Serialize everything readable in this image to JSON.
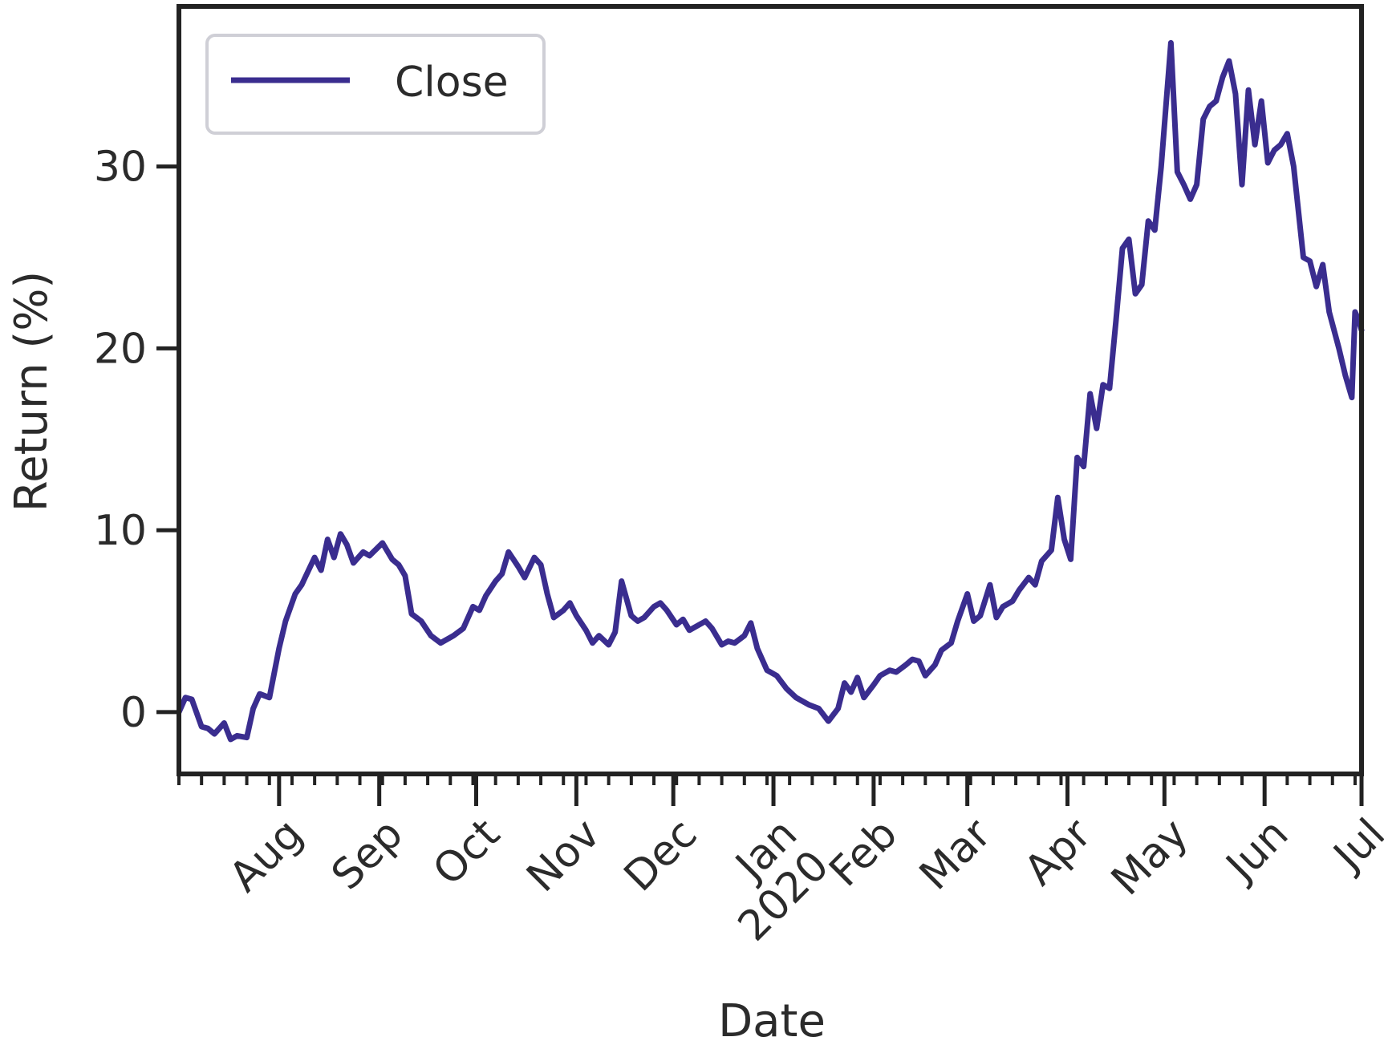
{
  "chart_data": {
    "type": "line",
    "xlabel": "Date",
    "ylabel": "Return (%)",
    "ylim": [
      -3.4,
      38.8
    ],
    "xlim": [
      "2019-07-01",
      "2020-07-01"
    ],
    "grid": false,
    "legend_position": "top-left",
    "colors": {
      "line": "#3a2d8f",
      "axis": "#222222",
      "legend_border": "#cfcfd6"
    },
    "yticks": [
      0,
      10,
      20,
      30
    ],
    "xticks": [
      {
        "date": "2019-08-01",
        "label": "Aug"
      },
      {
        "date": "2019-09-01",
        "label": "Sep"
      },
      {
        "date": "2019-10-01",
        "label": "Oct"
      },
      {
        "date": "2019-11-01",
        "label": "Nov"
      },
      {
        "date": "2019-12-01",
        "label": "Dec"
      },
      {
        "date": "2020-01-01",
        "label": "Jan\n2020"
      },
      {
        "date": "2020-02-01",
        "label": "Feb"
      },
      {
        "date": "2020-03-01",
        "label": "Mar"
      },
      {
        "date": "2020-04-01",
        "label": "Apr"
      },
      {
        "date": "2020-05-01",
        "label": "May"
      },
      {
        "date": "2020-06-01",
        "label": "Jun"
      },
      {
        "date": "2020-07-01",
        "label": "Jul"
      }
    ],
    "series": [
      {
        "name": "Close",
        "points": [
          [
            "2019-07-01",
            0.0
          ],
          [
            "2019-07-03",
            0.8
          ],
          [
            "2019-07-05",
            0.7
          ],
          [
            "2019-07-08",
            -0.8
          ],
          [
            "2019-07-10",
            -0.9
          ],
          [
            "2019-07-12",
            -1.2
          ],
          [
            "2019-07-15",
            -0.6
          ],
          [
            "2019-07-17",
            -1.5
          ],
          [
            "2019-07-19",
            -1.3
          ],
          [
            "2019-07-22",
            -1.4
          ],
          [
            "2019-07-24",
            0.2
          ],
          [
            "2019-07-26",
            1.0
          ],
          [
            "2019-07-29",
            0.8
          ],
          [
            "2019-08-01",
            3.5
          ],
          [
            "2019-08-03",
            5.0
          ],
          [
            "2019-08-06",
            6.5
          ],
          [
            "2019-08-08",
            7.0
          ],
          [
            "2019-08-12",
            8.5
          ],
          [
            "2019-08-14",
            7.8
          ],
          [
            "2019-08-16",
            9.5
          ],
          [
            "2019-08-18",
            8.5
          ],
          [
            "2019-08-20",
            9.8
          ],
          [
            "2019-08-22",
            9.2
          ],
          [
            "2019-08-24",
            8.2
          ],
          [
            "2019-08-27",
            8.8
          ],
          [
            "2019-08-29",
            8.6
          ],
          [
            "2019-09-02",
            9.3
          ],
          [
            "2019-09-05",
            8.4
          ],
          [
            "2019-09-07",
            8.1
          ],
          [
            "2019-09-09",
            7.5
          ],
          [
            "2019-09-11",
            5.4
          ],
          [
            "2019-09-14",
            5.0
          ],
          [
            "2019-09-17",
            4.2
          ],
          [
            "2019-09-20",
            3.8
          ],
          [
            "2019-09-24",
            4.2
          ],
          [
            "2019-09-27",
            4.6
          ],
          [
            "2019-09-30",
            5.8
          ],
          [
            "2019-10-02",
            5.6
          ],
          [
            "2019-10-04",
            6.4
          ],
          [
            "2019-10-07",
            7.2
          ],
          [
            "2019-10-09",
            7.6
          ],
          [
            "2019-10-11",
            8.8
          ],
          [
            "2019-10-14",
            8.0
          ],
          [
            "2019-10-16",
            7.4
          ],
          [
            "2019-10-19",
            8.5
          ],
          [
            "2019-10-21",
            8.1
          ],
          [
            "2019-10-23",
            6.5
          ],
          [
            "2019-10-25",
            5.2
          ],
          [
            "2019-10-28",
            5.6
          ],
          [
            "2019-10-30",
            6.0
          ],
          [
            "2019-11-01",
            5.3
          ],
          [
            "2019-11-04",
            4.5
          ],
          [
            "2019-11-06",
            3.8
          ],
          [
            "2019-11-08",
            4.2
          ],
          [
            "2019-11-11",
            3.7
          ],
          [
            "2019-11-13",
            4.4
          ],
          [
            "2019-11-15",
            7.2
          ],
          [
            "2019-11-18",
            5.3
          ],
          [
            "2019-11-20",
            5.0
          ],
          [
            "2019-11-22",
            5.2
          ],
          [
            "2019-11-25",
            5.8
          ],
          [
            "2019-11-27",
            6.0
          ],
          [
            "2019-11-29",
            5.6
          ],
          [
            "2019-12-02",
            4.8
          ],
          [
            "2019-12-04",
            5.1
          ],
          [
            "2019-12-06",
            4.5
          ],
          [
            "2019-12-09",
            4.8
          ],
          [
            "2019-12-11",
            5.0
          ],
          [
            "2019-12-13",
            4.6
          ],
          [
            "2019-12-16",
            3.7
          ],
          [
            "2019-12-18",
            3.9
          ],
          [
            "2019-12-20",
            3.8
          ],
          [
            "2019-12-23",
            4.2
          ],
          [
            "2019-12-25",
            4.9
          ],
          [
            "2019-12-27",
            3.5
          ],
          [
            "2019-12-30",
            2.3
          ],
          [
            "2020-01-02",
            2.0
          ],
          [
            "2020-01-05",
            1.3
          ],
          [
            "2020-01-08",
            0.8
          ],
          [
            "2020-01-12",
            0.4
          ],
          [
            "2020-01-15",
            0.2
          ],
          [
            "2020-01-18",
            -0.5
          ],
          [
            "2020-01-21",
            0.2
          ],
          [
            "2020-01-23",
            1.6
          ],
          [
            "2020-01-25",
            1.1
          ],
          [
            "2020-01-27",
            1.9
          ],
          [
            "2020-01-29",
            0.8
          ],
          [
            "2020-02-01",
            1.5
          ],
          [
            "2020-02-03",
            2.0
          ],
          [
            "2020-02-06",
            2.3
          ],
          [
            "2020-02-08",
            2.2
          ],
          [
            "2020-02-11",
            2.6
          ],
          [
            "2020-02-13",
            2.9
          ],
          [
            "2020-02-15",
            2.8
          ],
          [
            "2020-02-17",
            2.0
          ],
          [
            "2020-02-20",
            2.6
          ],
          [
            "2020-02-22",
            3.4
          ],
          [
            "2020-02-25",
            3.8
          ],
          [
            "2020-02-27",
            5.0
          ],
          [
            "2020-03-01",
            6.5
          ],
          [
            "2020-03-03",
            5.0
          ],
          [
            "2020-03-05",
            5.3
          ],
          [
            "2020-03-08",
            7.0
          ],
          [
            "2020-03-10",
            5.2
          ],
          [
            "2020-03-12",
            5.8
          ],
          [
            "2020-03-15",
            6.1
          ],
          [
            "2020-03-17",
            6.7
          ],
          [
            "2020-03-20",
            7.4
          ],
          [
            "2020-03-22",
            7.0
          ],
          [
            "2020-03-24",
            8.3
          ],
          [
            "2020-03-27",
            8.9
          ],
          [
            "2020-03-29",
            11.8
          ],
          [
            "2020-03-31",
            9.5
          ],
          [
            "2020-04-02",
            8.4
          ],
          [
            "2020-04-04",
            14.0
          ],
          [
            "2020-04-06",
            13.5
          ],
          [
            "2020-04-08",
            17.5
          ],
          [
            "2020-04-10",
            15.6
          ],
          [
            "2020-04-12",
            18.0
          ],
          [
            "2020-04-14",
            17.8
          ],
          [
            "2020-04-16",
            21.5
          ],
          [
            "2020-04-18",
            25.5
          ],
          [
            "2020-04-20",
            26.0
          ],
          [
            "2020-04-22",
            23.0
          ],
          [
            "2020-04-24",
            23.5
          ],
          [
            "2020-04-26",
            27.0
          ],
          [
            "2020-04-28",
            26.5
          ],
          [
            "2020-04-30",
            30.0
          ],
          [
            "2020-05-03",
            36.8
          ],
          [
            "2020-05-05",
            29.7
          ],
          [
            "2020-05-07",
            29.0
          ],
          [
            "2020-05-09",
            28.2
          ],
          [
            "2020-05-11",
            29.0
          ],
          [
            "2020-05-13",
            32.6
          ],
          [
            "2020-05-15",
            33.3
          ],
          [
            "2020-05-17",
            33.6
          ],
          [
            "2020-05-19",
            34.9
          ],
          [
            "2020-05-21",
            35.8
          ],
          [
            "2020-05-23",
            34.0
          ],
          [
            "2020-05-25",
            29.0
          ],
          [
            "2020-05-27",
            34.2
          ],
          [
            "2020-05-29",
            31.2
          ],
          [
            "2020-05-31",
            33.6
          ],
          [
            "2020-06-02",
            30.2
          ],
          [
            "2020-06-04",
            30.9
          ],
          [
            "2020-06-06",
            31.2
          ],
          [
            "2020-06-08",
            31.8
          ],
          [
            "2020-06-10",
            30.0
          ],
          [
            "2020-06-13",
            25.0
          ],
          [
            "2020-06-15",
            24.8
          ],
          [
            "2020-06-17",
            23.4
          ],
          [
            "2020-06-19",
            24.6
          ],
          [
            "2020-06-21",
            22.0
          ],
          [
            "2020-06-24",
            20.0
          ],
          [
            "2020-06-26",
            18.5
          ],
          [
            "2020-06-28",
            17.3
          ],
          [
            "2020-06-29",
            22.0
          ],
          [
            "2020-06-30",
            21.6
          ],
          [
            "2020-07-01",
            21.0
          ]
        ]
      }
    ]
  }
}
